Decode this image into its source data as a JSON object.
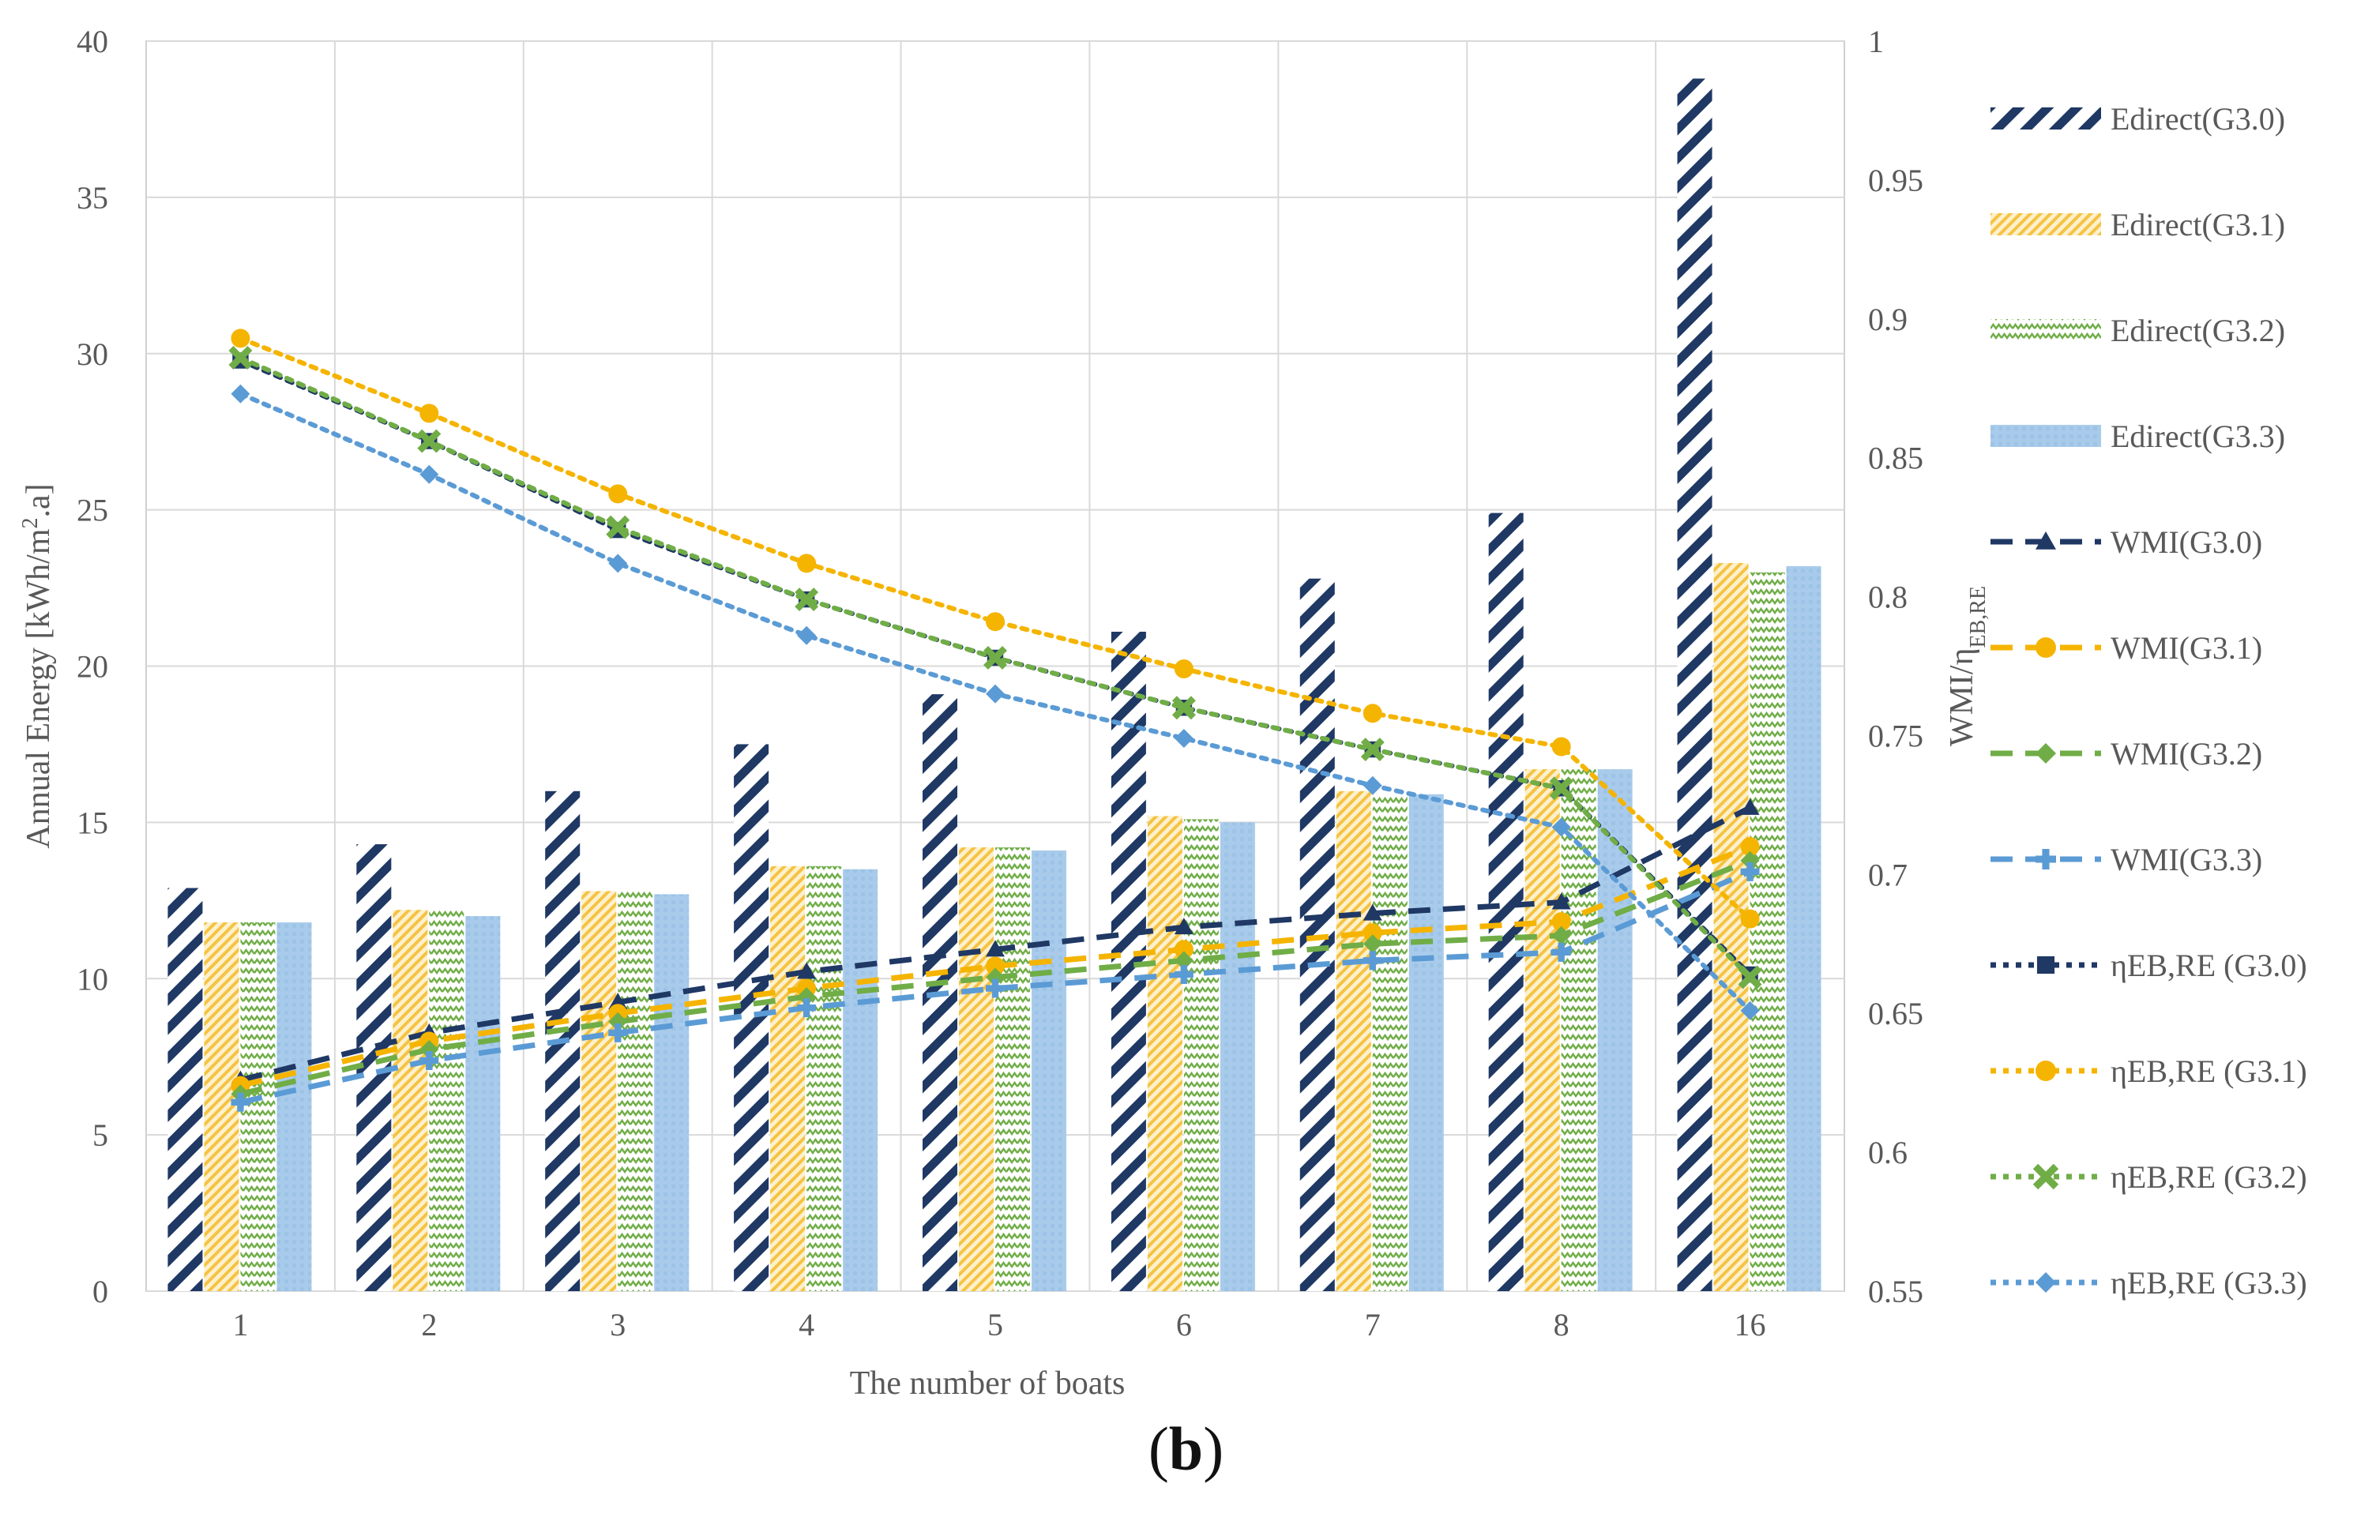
{
  "figure_label": {
    "open": "(",
    "letter": "b",
    "close": ")"
  },
  "chart_data": {
    "type": "bar",
    "title": "",
    "xlabel": "The number of boats",
    "ylabel": "Annual Energy [kWh/m².a]",
    "ylabel_parts": {
      "main": "Annual Energy [kWh/m",
      "sup": "2",
      "tail": ".a]"
    },
    "y2label": "WMI/ηEB,RE",
    "y2label_parts": {
      "main": "WMI/η",
      "sub": "EB,RE"
    },
    "categories": [
      "1",
      "2",
      "3",
      "4",
      "5",
      "6",
      "7",
      "8",
      "16"
    ],
    "ylim": [
      0,
      40
    ],
    "yticks": [
      0,
      5,
      10,
      15,
      20,
      25,
      30,
      35,
      40
    ],
    "y2lim": [
      0.55,
      1
    ],
    "y2ticks": [
      "0.55",
      "0.6",
      "0.65",
      "0.7",
      "0.75",
      "0.8",
      "0.85",
      "0.9",
      "0.95",
      "1"
    ],
    "grid": true,
    "legend_position": "right",
    "bar_series": [
      {
        "name": "Edirect(G3.0)",
        "color": "#1f3864",
        "pattern": "diagonal",
        "values": [
          12.9,
          14.3,
          16.0,
          17.5,
          19.1,
          21.1,
          22.8,
          24.9,
          38.8
        ]
      },
      {
        "name": "Edirect(G3.1)",
        "color": "#f5c343",
        "pattern": "light-diagonal",
        "values": [
          11.8,
          12.2,
          12.8,
          13.6,
          14.2,
          15.2,
          16.0,
          16.7,
          23.3
        ]
      },
      {
        "name": "Edirect(G3.2)",
        "color": "#70ad47",
        "pattern": "zigzag",
        "values": [
          11.8,
          12.2,
          12.8,
          13.6,
          14.2,
          15.1,
          15.9,
          16.7,
          23.0
        ]
      },
      {
        "name": "Edirect(G3.3)",
        "color": "#9dc3e6",
        "pattern": "solid",
        "values": [
          11.8,
          12.0,
          12.7,
          13.5,
          14.1,
          15.0,
          15.9,
          16.7,
          23.2
        ]
      }
    ],
    "line_series": [
      {
        "name": "WMI(G3.0)",
        "color": "#1f3864",
        "dash": "long",
        "marker": "triangle",
        "values": [
          0.626,
          0.643,
          0.654,
          0.665,
          0.673,
          0.681,
          0.686,
          0.69,
          0.724
        ]
      },
      {
        "name": "WMI(G3.1)",
        "color": "#f5b400",
        "dash": "long",
        "marker": "circle",
        "values": [
          0.624,
          0.64,
          0.65,
          0.659,
          0.667,
          0.673,
          0.679,
          0.683,
          0.71
        ]
      },
      {
        "name": "WMI(G3.2)",
        "color": "#70ad47",
        "dash": "long",
        "marker": "diamond",
        "values": [
          0.621,
          0.637,
          0.647,
          0.656,
          0.663,
          0.669,
          0.675,
          0.678,
          0.705
        ]
      },
      {
        "name": "WMI(G3.3)",
        "color": "#5b9bd5",
        "dash": "long",
        "marker": "plus",
        "values": [
          0.618,
          0.633,
          0.643,
          0.652,
          0.659,
          0.664,
          0.669,
          0.672,
          0.701
        ]
      },
      {
        "name": "ηEB,RE (G3.0)",
        "color": "#1f3864",
        "dash": "dot",
        "marker": "square",
        "values": [
          0.885,
          0.856,
          0.824,
          0.799,
          0.778,
          0.76,
          0.745,
          0.731,
          0.664
        ]
      },
      {
        "name": "ηEB,RE (G3.1)",
        "color": "#f5b400",
        "dash": "dot",
        "marker": "circle",
        "values": [
          0.893,
          0.866,
          0.837,
          0.812,
          0.791,
          0.774,
          0.758,
          0.746,
          0.684
        ]
      },
      {
        "name": "ηEB,RE (G3.2)",
        "color": "#70ad47",
        "dash": "dot",
        "marker": "cross",
        "values": [
          0.886,
          0.856,
          0.825,
          0.799,
          0.778,
          0.76,
          0.745,
          0.731,
          0.663
        ]
      },
      {
        "name": "ηEB,RE (G3.3)",
        "color": "#5b9bd5",
        "dash": "dot",
        "marker": "diamond",
        "values": [
          0.873,
          0.844,
          0.812,
          0.786,
          0.765,
          0.749,
          0.732,
          0.717,
          0.651
        ]
      }
    ]
  }
}
